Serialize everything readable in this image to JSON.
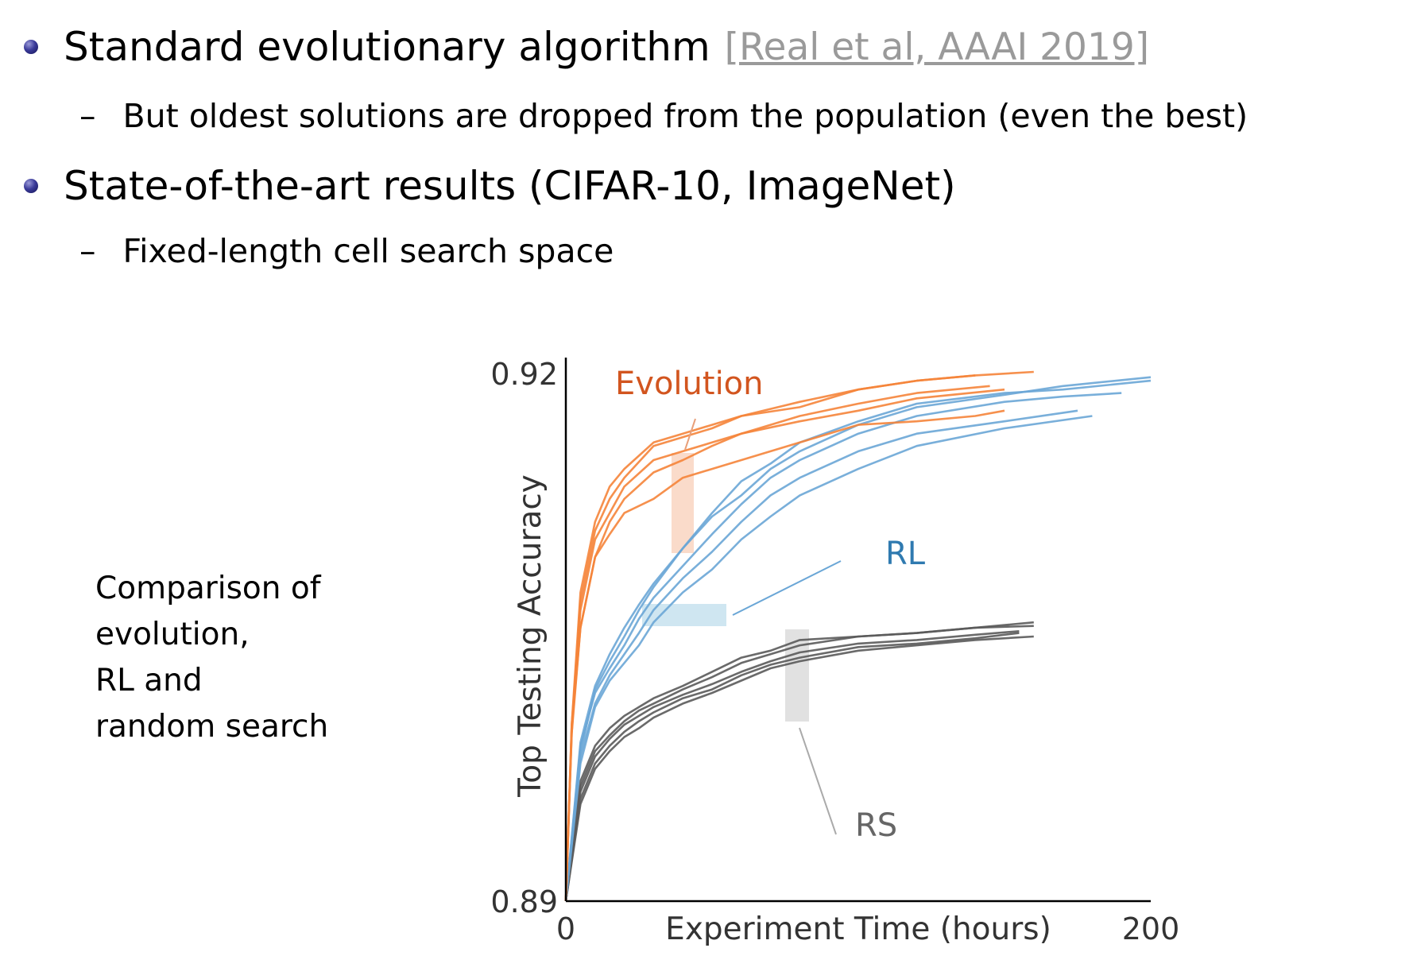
{
  "bullets": [
    {
      "text": "Standard evolutionary algorithm",
      "citation": "[Real et al, AAAI 2019]",
      "sub": "But oldest solutions are dropped from the population (even the best)"
    },
    {
      "text": "State-of-the-art results (CIFAR-10, ImageNet)",
      "sub": "Fixed-length cell search space"
    }
  ],
  "caption": [
    "Comparison of",
    "evolution,",
    "RL and",
    "random search"
  ],
  "colors": {
    "evolution": "#f5843a",
    "rl": "#6aa6d6",
    "rs": "#5a5a5a",
    "evolution_label": "#d2551f",
    "rl_label": "#2f7ab0",
    "rs_label": "#666666"
  },
  "chart_data": {
    "type": "line",
    "xlabel": "Experiment Time (hours)",
    "ylabel": "Top Testing Accuracy",
    "xlim": [
      0,
      200
    ],
    "ylim": [
      0.89,
      0.92
    ],
    "x_ticks": [
      "0",
      "200"
    ],
    "y_ticks": [
      "0.92",
      "0.89"
    ],
    "annotations": [
      "Evolution",
      "RL",
      "RS"
    ],
    "series": [
      {
        "group": "Evolution",
        "x": [
          0,
          2,
          5,
          10,
          15,
          20,
          30,
          40,
          50,
          60,
          80,
          100,
          120,
          140,
          160
        ],
        "y": [
          0.89,
          0.9,
          0.9075,
          0.9115,
          0.9135,
          0.9145,
          0.916,
          0.9165,
          0.917,
          0.9175,
          0.918,
          0.919,
          0.9195,
          0.9198,
          0.92
        ]
      },
      {
        "group": "Evolution",
        "x": [
          0,
          2,
          5,
          10,
          15,
          20,
          30,
          40,
          50,
          60,
          80,
          100,
          120,
          140
        ],
        "y": [
          0.89,
          0.8995,
          0.907,
          0.911,
          0.9128,
          0.914,
          0.9158,
          0.9163,
          0.9168,
          0.9175,
          0.9183,
          0.919,
          0.9195,
          0.9198
        ]
      },
      {
        "group": "Evolution",
        "x": [
          0,
          2,
          5,
          10,
          15,
          20,
          30,
          40,
          50,
          60,
          80,
          100,
          120,
          150
        ],
        "y": [
          0.89,
          0.9,
          0.9065,
          0.9105,
          0.912,
          0.9135,
          0.915,
          0.9155,
          0.916,
          0.9165,
          0.9172,
          0.9178,
          0.9185,
          0.919
        ]
      },
      {
        "group": "Evolution",
        "x": [
          0,
          2,
          5,
          10,
          15,
          20,
          30,
          40,
          50,
          60,
          80,
          100,
          120,
          145
        ],
        "y": [
          0.89,
          0.8998,
          0.9055,
          0.9095,
          0.9115,
          0.9128,
          0.9143,
          0.915,
          0.9158,
          0.9165,
          0.9175,
          0.9182,
          0.9188,
          0.9192
        ]
      },
      {
        "group": "Evolution",
        "x": [
          0,
          2,
          5,
          10,
          15,
          20,
          30,
          40,
          50,
          60,
          80,
          100,
          120,
          140,
          150
        ],
        "y": [
          0.89,
          0.8995,
          0.9055,
          0.9095,
          0.9108,
          0.912,
          0.9128,
          0.914,
          0.9145,
          0.915,
          0.916,
          0.917,
          0.9172,
          0.9175,
          0.9178
        ]
      },
      {
        "group": "RL",
        "x": [
          0,
          5,
          10,
          15,
          20,
          25,
          30,
          40,
          50,
          60,
          70,
          80,
          100,
          120,
          150,
          170,
          200
        ],
        "y": [
          0.89,
          0.899,
          0.9022,
          0.904,
          0.9055,
          0.9068,
          0.908,
          0.91,
          0.912,
          0.9138,
          0.9148,
          0.916,
          0.9172,
          0.9182,
          0.9188,
          0.919,
          0.9195
        ]
      },
      {
        "group": "RL",
        "x": [
          0,
          5,
          10,
          15,
          20,
          25,
          30,
          40,
          50,
          60,
          70,
          80,
          100,
          120,
          150,
          170,
          200
        ],
        "y": [
          0.89,
          0.8985,
          0.902,
          0.9036,
          0.905,
          0.9065,
          0.9078,
          0.91,
          0.9118,
          0.913,
          0.9145,
          0.9155,
          0.917,
          0.918,
          0.9187,
          0.9192,
          0.9197
        ]
      },
      {
        "group": "RL",
        "x": [
          0,
          5,
          10,
          15,
          20,
          25,
          30,
          40,
          50,
          60,
          70,
          80,
          100,
          120,
          150,
          170,
          190
        ],
        "y": [
          0.89,
          0.8988,
          0.9018,
          0.9032,
          0.9045,
          0.906,
          0.9072,
          0.909,
          0.9108,
          0.9125,
          0.914,
          0.915,
          0.9165,
          0.9175,
          0.9183,
          0.9186,
          0.9188
        ]
      },
      {
        "group": "RL",
        "x": [
          0,
          5,
          10,
          15,
          20,
          25,
          30,
          40,
          50,
          60,
          70,
          80,
          100,
          120,
          150,
          175
        ],
        "y": [
          0.89,
          0.8982,
          0.9012,
          0.9028,
          0.904,
          0.9052,
          0.9065,
          0.9083,
          0.9098,
          0.9115,
          0.913,
          0.914,
          0.9155,
          0.9165,
          0.9172,
          0.9178
        ]
      },
      {
        "group": "RL",
        "x": [
          0,
          5,
          10,
          15,
          20,
          25,
          30,
          40,
          50,
          60,
          70,
          80,
          100,
          120,
          150,
          180
        ],
        "y": [
          0.89,
          0.8978,
          0.901,
          0.9025,
          0.9035,
          0.9045,
          0.9058,
          0.9075,
          0.9088,
          0.9105,
          0.9118,
          0.913,
          0.9145,
          0.9158,
          0.9168,
          0.9175
        ]
      },
      {
        "group": "RS",
        "x": [
          0,
          5,
          10,
          15,
          20,
          25,
          30,
          40,
          50,
          60,
          70,
          80,
          100,
          120,
          140,
          160
        ],
        "y": [
          0.89,
          0.8968,
          0.8988,
          0.8998,
          0.9005,
          0.901,
          0.9015,
          0.9022,
          0.903,
          0.9038,
          0.9042,
          0.9048,
          0.905,
          0.9052,
          0.9055,
          0.9058
        ]
      },
      {
        "group": "RS",
        "x": [
          0,
          5,
          10,
          15,
          20,
          25,
          30,
          40,
          50,
          60,
          70,
          80,
          100,
          120,
          140,
          160
        ],
        "y": [
          0.89,
          0.8965,
          0.8985,
          0.8994,
          0.9002,
          0.9008,
          0.9012,
          0.902,
          0.9027,
          0.9035,
          0.904,
          0.9045,
          0.905,
          0.9052,
          0.9055,
          0.9056
        ]
      },
      {
        "group": "RS",
        "x": [
          0,
          5,
          10,
          15,
          20,
          25,
          30,
          40,
          50,
          60,
          70,
          80,
          100,
          120,
          140,
          155
        ],
        "y": [
          0.89,
          0.8962,
          0.8982,
          0.8992,
          0.9,
          0.9005,
          0.901,
          0.9017,
          0.9023,
          0.903,
          0.9036,
          0.9041,
          0.9046,
          0.9048,
          0.9051,
          0.9053
        ]
      },
      {
        "group": "RS",
        "x": [
          0,
          5,
          10,
          15,
          20,
          25,
          30,
          40,
          50,
          60,
          70,
          80,
          100,
          120,
          140,
          155
        ],
        "y": [
          0.89,
          0.8958,
          0.8978,
          0.8988,
          0.8996,
          0.9002,
          0.9007,
          0.9015,
          0.902,
          0.9028,
          0.9034,
          0.9038,
          0.9044,
          0.9046,
          0.9049,
          0.9052
        ]
      },
      {
        "group": "RS",
        "x": [
          0,
          5,
          10,
          15,
          20,
          25,
          30,
          40,
          50,
          60,
          70,
          80,
          100,
          120,
          140,
          160
        ],
        "y": [
          0.89,
          0.8955,
          0.8975,
          0.8985,
          0.8993,
          0.8998,
          0.9004,
          0.9012,
          0.9018,
          0.9025,
          0.9032,
          0.9036,
          0.9042,
          0.9045,
          0.9048,
          0.905
        ]
      }
    ],
    "grid": false,
    "legend": "none"
  }
}
